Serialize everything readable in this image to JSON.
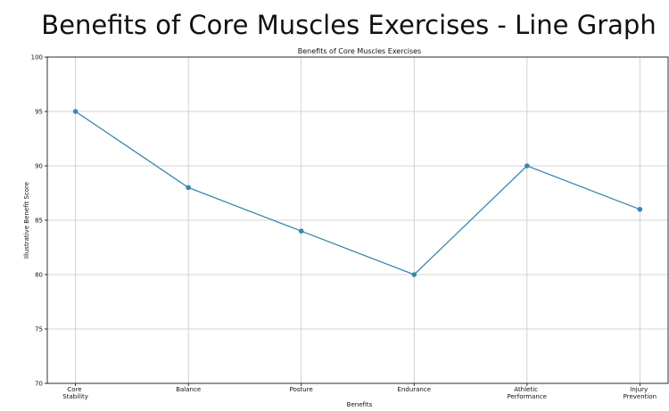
{
  "heading": "Benefits of Core Muscles Exercises - Line Graph",
  "chart_data": {
    "type": "line",
    "title": "Benefits of Core Muscles Exercises",
    "x_label": "Benefits",
    "y_label": "Illustrative Benefit Score",
    "categories": [
      "Core Stability",
      "Balance",
      "Posture",
      "Endurance",
      "Athletic Performance",
      "Injury Prevention"
    ],
    "values": [
      95,
      88,
      84,
      80,
      90,
      86
    ],
    "color": "#3a87ad",
    "ylim": [
      70,
      100
    ],
    "yticks": [
      70,
      75,
      80,
      85,
      90,
      95,
      100
    ],
    "grid": true
  }
}
